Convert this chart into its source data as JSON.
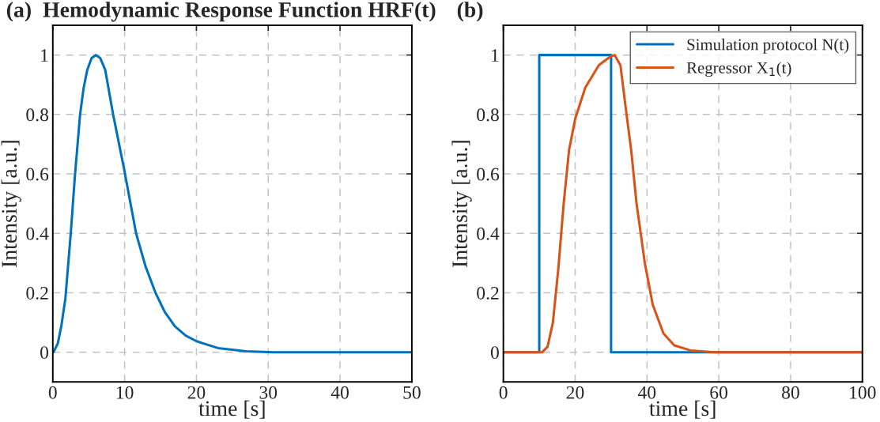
{
  "chart_data": [
    {
      "type": "line",
      "title": "(a)  Hemodynamic Response Function HRF(t)",
      "xlabel": "time [s]",
      "ylabel": "Intensity [a.u.]",
      "xlim": [
        0,
        50
      ],
      "ylim": [
        -0.1,
        1.1
      ],
      "xticks": [
        0,
        10,
        20,
        30,
        40,
        50
      ],
      "yticks": [
        0,
        0.2,
        0.4,
        0.6,
        0.8,
        1
      ],
      "grid": true,
      "series": [
        {
          "color": "#0072bd",
          "x": [
            0.1,
            0.7,
            1.2,
            1.75,
            2.5,
            3.1,
            3.8,
            4.3,
            4.8,
            5.4,
            6.0,
            6.6,
            7.3,
            8.4,
            9.9,
            11.6,
            12.9,
            14.3,
            15.6,
            17.0,
            18.5,
            20,
            23,
            26.9,
            30.7,
            50
          ],
          "values": [
            0,
            0.03,
            0.09,
            0.18,
            0.4,
            0.6,
            0.8,
            0.89,
            0.95,
            0.99,
            1.0,
            0.99,
            0.95,
            0.8,
            0.62,
            0.4,
            0.29,
            0.2,
            0.135,
            0.087,
            0.056,
            0.037,
            0.014,
            0.003,
            0,
            0
          ]
        }
      ]
    },
    {
      "type": "line",
      "title": "(b)",
      "xlabel": "time [s]",
      "ylabel": "Intensity [a.u.]",
      "xlim": [
        0,
        100
      ],
      "ylim": [
        -0.1,
        1.1
      ],
      "xticks": [
        0,
        20,
        40,
        60,
        80,
        100
      ],
      "yticks": [
        0,
        0.2,
        0.4,
        0.6,
        0.8,
        1
      ],
      "grid": true,
      "legend": "top right",
      "series": [
        {
          "name": "Simulation protocol N(t)",
          "color": "#0072bd",
          "x": [
            0,
            10,
            10,
            30,
            30,
            100
          ],
          "values": [
            0,
            0,
            1,
            1,
            0,
            0
          ]
        },
        {
          "name": "Regressor X$_{1}$(t)",
          "color": "#d95319",
          "x": [
            0,
            10.8,
            12.3,
            13.8,
            15.3,
            16.8,
            18.3,
            20,
            22.8,
            26.6,
            29.6,
            31.0,
            32.6,
            34.1,
            35.6,
            37.1,
            39.4,
            41.6,
            44.6,
            47.6,
            52.1,
            58.9,
            100
          ],
          "values": [
            0,
            0,
            0.018,
            0.1,
            0.28,
            0.5,
            0.68,
            0.785,
            0.89,
            0.966,
            0.993,
            1.0,
            0.966,
            0.82,
            0.68,
            0.5,
            0.3,
            0.16,
            0.063,
            0.023,
            0.006,
            0,
            0
          ]
        }
      ]
    }
  ]
}
